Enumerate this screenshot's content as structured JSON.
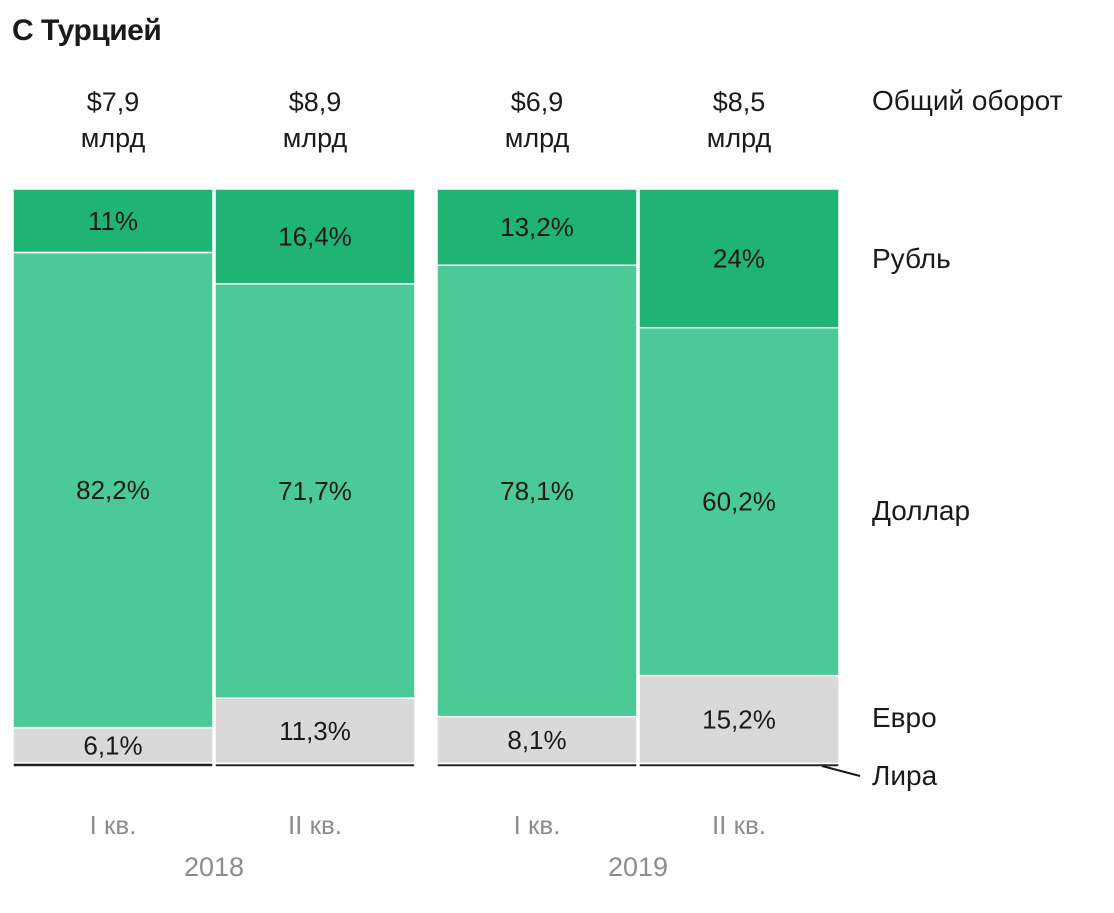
{
  "chart_data": {
    "type": "bar",
    "stacked": true,
    "normalized": true,
    "title": "С Турцией",
    "categories": [
      "I кв.",
      "II кв.",
      "I кв.",
      "II кв."
    ],
    "groups": [
      {
        "label": "2018",
        "categories": [
          "I кв.",
          "II кв."
        ]
      },
      {
        "label": "2019",
        "categories": [
          "I кв.",
          "II кв."
        ]
      }
    ],
    "totals": [
      {
        "amount": "$7,9",
        "unit": "млрд"
      },
      {
        "amount": "$8,9",
        "unit": "млрд"
      },
      {
        "amount": "$6,9",
        "unit": "млрд"
      },
      {
        "amount": "$8,5",
        "unit": "млрд"
      }
    ],
    "totals_label": "Общий оборот",
    "series": [
      {
        "name": "Рубль",
        "values": [
          11,
          16.4,
          13.2,
          24
        ],
        "labels": [
          "11%",
          "16,4%",
          "13,2%",
          "24%"
        ],
        "color": "#1fb374"
      },
      {
        "name": "Доллар",
        "values": [
          82.2,
          71.7,
          78.1,
          60.2
        ],
        "labels": [
          "82,2%",
          "71,7%",
          "78,1%",
          "60,2%"
        ],
        "color": "#4bc996"
      },
      {
        "name": "Евро",
        "values": [
          6.1,
          11.3,
          8.1,
          15.2
        ],
        "labels": [
          "6,1%",
          "11,3%",
          "8,1%",
          "15,2%"
        ],
        "color": "#d9d9d9"
      },
      {
        "name": "Лира",
        "values": [
          0.7,
          0.6,
          0.6,
          0.6
        ],
        "labels": [
          "",
          "",
          "",
          ""
        ],
        "color": "#222222"
      }
    ],
    "ylim": [
      0,
      100
    ],
    "legend": "right"
  }
}
